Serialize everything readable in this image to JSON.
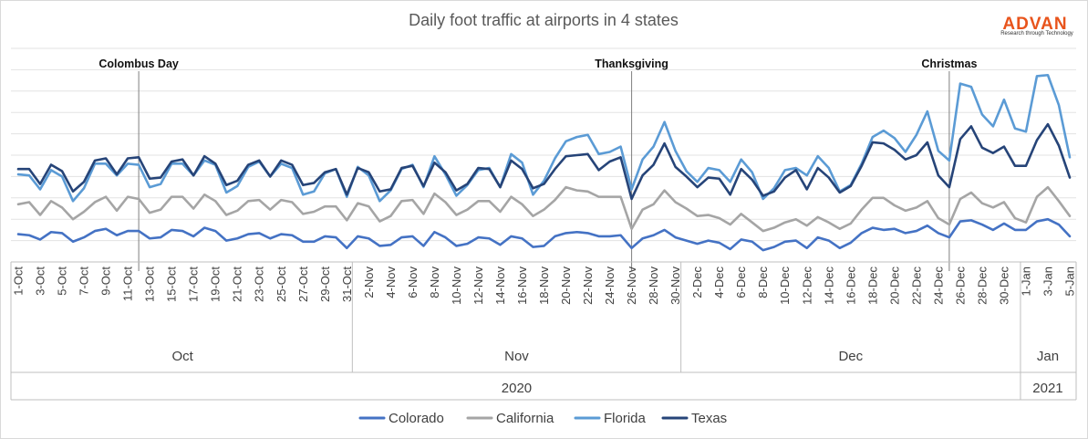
{
  "chart_data": {
    "type": "line",
    "title": "Daily foot traffic at airports in 4 states",
    "xlabel": "",
    "ylabel": "",
    "grid": true,
    "legend_placement": "bottom",
    "x": [
      "1-Oct",
      "2-Oct",
      "3-Oct",
      "4-Oct",
      "5-Oct",
      "6-Oct",
      "7-Oct",
      "8-Oct",
      "9-Oct",
      "10-Oct",
      "11-Oct",
      "12-Oct",
      "13-Oct",
      "14-Oct",
      "15-Oct",
      "16-Oct",
      "17-Oct",
      "18-Oct",
      "19-Oct",
      "20-Oct",
      "21-Oct",
      "22-Oct",
      "23-Oct",
      "24-Oct",
      "25-Oct",
      "26-Oct",
      "27-Oct",
      "28-Oct",
      "29-Oct",
      "30-Oct",
      "31-Oct",
      "1-Nov",
      "2-Nov",
      "3-Nov",
      "4-Nov",
      "5-Nov",
      "6-Nov",
      "7-Nov",
      "8-Nov",
      "9-Nov",
      "10-Nov",
      "11-Nov",
      "12-Nov",
      "13-Nov",
      "14-Nov",
      "15-Nov",
      "16-Nov",
      "17-Nov",
      "18-Nov",
      "19-Nov",
      "20-Nov",
      "21-Nov",
      "22-Nov",
      "23-Nov",
      "24-Nov",
      "25-Nov",
      "26-Nov",
      "27-Nov",
      "28-Nov",
      "29-Nov",
      "30-Nov",
      "1-Dec",
      "2-Dec",
      "3-Dec",
      "4-Dec",
      "5-Dec",
      "6-Dec",
      "7-Dec",
      "8-Dec",
      "9-Dec",
      "10-Dec",
      "11-Dec",
      "12-Dec",
      "13-Dec",
      "14-Dec",
      "15-Dec",
      "16-Dec",
      "17-Dec",
      "18-Dec",
      "19-Dec",
      "20-Dec",
      "21-Dec",
      "22-Dec",
      "23-Dec",
      "24-Dec",
      "25-Dec",
      "26-Dec",
      "27-Dec",
      "28-Dec",
      "29-Dec",
      "30-Dec",
      "31-Dec",
      "1-Jan",
      "2-Jan",
      "3-Jan",
      "4-Jan",
      "5-Jan"
    ],
    "tick_labels": [
      "1-Oct",
      "3-Oct",
      "5-Oct",
      "7-Oct",
      "9-Oct",
      "11-Oct",
      "13-Oct",
      "15-Oct",
      "17-Oct",
      "19-Oct",
      "21-Oct",
      "23-Oct",
      "25-Oct",
      "27-Oct",
      "29-Oct",
      "31-Oct",
      "2-Nov",
      "4-Nov",
      "6-Nov",
      "8-Nov",
      "10-Nov",
      "12-Nov",
      "14-Nov",
      "16-Nov",
      "18-Nov",
      "20-Nov",
      "22-Nov",
      "24-Nov",
      "26-Nov",
      "28-Nov",
      "30-Nov",
      "2-Dec",
      "4-Dec",
      "6-Dec",
      "8-Dec",
      "10-Dec",
      "12-Dec",
      "14-Dec",
      "16-Dec",
      "18-Dec",
      "20-Dec",
      "22-Dec",
      "24-Dec",
      "26-Dec",
      "28-Dec",
      "30-Dec",
      "1-Jan",
      "3-Jan",
      "5-Jan"
    ],
    "months": [
      {
        "label": "Oct",
        "start": "1-Oct",
        "end": "31-Oct"
      },
      {
        "label": "Nov",
        "start": "1-Nov",
        "end": "30-Nov"
      },
      {
        "label": "Dec",
        "start": "1-Dec",
        "end": "31-Dec"
      },
      {
        "label": "Jan",
        "start": "1-Jan",
        "end": "5-Jan"
      }
    ],
    "years": [
      {
        "label": "2020",
        "start": "1-Oct",
        "end": "31-Dec"
      },
      {
        "label": "2021",
        "start": "1-Jan",
        "end": "5-Jan"
      }
    ],
    "events": [
      {
        "label": "Colombus Day",
        "date": "12-Oct"
      },
      {
        "label": "Thanksgiving",
        "date": "26-Nov"
      },
      {
        "label": "Christmas",
        "date": "25-Dec"
      }
    ],
    "ylim": [
      0,
      10
    ],
    "series": [
      {
        "name": "Colorado",
        "color": "#4472c4",
        "values": [
          1.3,
          1.25,
          1.05,
          1.4,
          1.35,
          0.95,
          1.15,
          1.45,
          1.55,
          1.25,
          1.45,
          1.45,
          1.1,
          1.15,
          1.5,
          1.45,
          1.2,
          1.6,
          1.45,
          1.0,
          1.1,
          1.3,
          1.35,
          1.1,
          1.3,
          1.25,
          0.95,
          0.95,
          1.2,
          1.15,
          0.65,
          1.2,
          1.1,
          0.75,
          0.8,
          1.15,
          1.2,
          0.75,
          1.4,
          1.15,
          0.75,
          0.85,
          1.15,
          1.1,
          0.8,
          1.2,
          1.1,
          0.7,
          0.75,
          1.2,
          1.35,
          1.4,
          1.35,
          1.2,
          1.2,
          1.25,
          0.65,
          1.1,
          1.25,
          1.5,
          1.15,
          1.0,
          0.85,
          1.0,
          0.9,
          0.6,
          1.05,
          0.95,
          0.55,
          0.7,
          0.95,
          1.0,
          0.65,
          1.15,
          1.0,
          0.65,
          0.9,
          1.35,
          1.6,
          1.5,
          1.55,
          1.35,
          1.45,
          1.7,
          1.35,
          1.15,
          1.9,
          1.95,
          1.75,
          1.5,
          1.8,
          1.5,
          1.5,
          1.9,
          2.0,
          1.75,
          1.2
        ]
      },
      {
        "name": "California",
        "color": "#a5a5a5",
        "values": [
          2.7,
          2.8,
          2.2,
          2.85,
          2.55,
          2.0,
          2.35,
          2.8,
          3.05,
          2.4,
          3.05,
          2.95,
          2.3,
          2.45,
          3.05,
          3.05,
          2.5,
          3.15,
          2.85,
          2.2,
          2.4,
          2.85,
          2.9,
          2.45,
          2.9,
          2.8,
          2.25,
          2.35,
          2.6,
          2.6,
          1.95,
          2.75,
          2.6,
          1.9,
          2.15,
          2.85,
          2.9,
          2.25,
          3.2,
          2.8,
          2.2,
          2.45,
          2.85,
          2.85,
          2.35,
          3.05,
          2.7,
          2.15,
          2.45,
          2.9,
          3.5,
          3.35,
          3.3,
          3.05,
          3.05,
          3.05,
          1.55,
          2.45,
          2.7,
          3.35,
          2.8,
          2.5,
          2.15,
          2.2,
          2.05,
          1.75,
          2.25,
          1.85,
          1.45,
          1.6,
          1.85,
          2.0,
          1.7,
          2.1,
          1.85,
          1.55,
          1.8,
          2.45,
          3.0,
          3.0,
          2.65,
          2.4,
          2.55,
          2.85,
          2.05,
          1.75,
          2.95,
          3.25,
          2.75,
          2.55,
          2.8,
          2.05,
          1.85,
          3.05,
          3.5,
          2.85,
          2.15
        ]
      },
      {
        "name": "Florida",
        "color": "#5b9bd5",
        "values": [
          4.1,
          4.05,
          3.4,
          4.3,
          4.0,
          2.85,
          3.45,
          4.6,
          4.6,
          4.05,
          4.6,
          4.55,
          3.5,
          3.65,
          4.6,
          4.6,
          4.05,
          4.75,
          4.55,
          3.25,
          3.55,
          4.45,
          4.7,
          4.0,
          4.6,
          4.4,
          3.15,
          3.3,
          4.15,
          4.35,
          3.05,
          4.45,
          4.05,
          2.85,
          3.35,
          4.35,
          4.55,
          3.5,
          4.95,
          4.1,
          3.1,
          3.6,
          4.3,
          4.4,
          3.5,
          5.05,
          4.65,
          3.15,
          3.8,
          4.85,
          5.65,
          5.85,
          5.95,
          5.05,
          5.15,
          5.4,
          3.4,
          4.8,
          5.4,
          6.55,
          5.2,
          4.25,
          3.75,
          4.4,
          4.3,
          3.75,
          4.8,
          4.2,
          2.95,
          3.45,
          4.3,
          4.4,
          4.05,
          4.95,
          4.4,
          3.3,
          3.6,
          4.6,
          5.85,
          6.15,
          5.8,
          5.15,
          5.95,
          7.05,
          5.2,
          4.75,
          8.35,
          8.2,
          6.9,
          6.35,
          7.6,
          6.25,
          6.1,
          8.7,
          8.75,
          7.35,
          4.9
        ]
      },
      {
        "name": "Texas",
        "color": "#264478",
        "values": [
          4.35,
          4.35,
          3.65,
          4.55,
          4.25,
          3.3,
          3.75,
          4.75,
          4.85,
          4.1,
          4.85,
          4.9,
          3.9,
          3.95,
          4.7,
          4.8,
          4.05,
          4.95,
          4.6,
          3.6,
          3.8,
          4.55,
          4.75,
          4.0,
          4.75,
          4.55,
          3.6,
          3.7,
          4.2,
          4.35,
          3.15,
          4.4,
          4.2,
          3.3,
          3.4,
          4.4,
          4.5,
          3.55,
          4.65,
          4.2,
          3.35,
          3.65,
          4.4,
          4.35,
          3.5,
          4.75,
          4.35,
          3.45,
          3.65,
          4.35,
          4.95,
          5.0,
          5.05,
          4.3,
          4.7,
          4.9,
          2.95,
          4.05,
          4.55,
          5.55,
          4.45,
          4.0,
          3.5,
          3.95,
          3.9,
          3.15,
          4.35,
          3.85,
          3.1,
          3.3,
          3.95,
          4.3,
          3.4,
          4.4,
          3.95,
          3.25,
          3.55,
          4.5,
          5.6,
          5.55,
          5.25,
          4.8,
          5.0,
          5.6,
          4.05,
          3.5,
          5.75,
          6.35,
          5.35,
          5.1,
          5.4,
          4.5,
          4.5,
          5.7,
          6.45,
          5.45,
          3.95
        ]
      }
    ]
  },
  "branding": {
    "logo_text": "ADVAN",
    "logo_tagline": "Research through Technology"
  }
}
